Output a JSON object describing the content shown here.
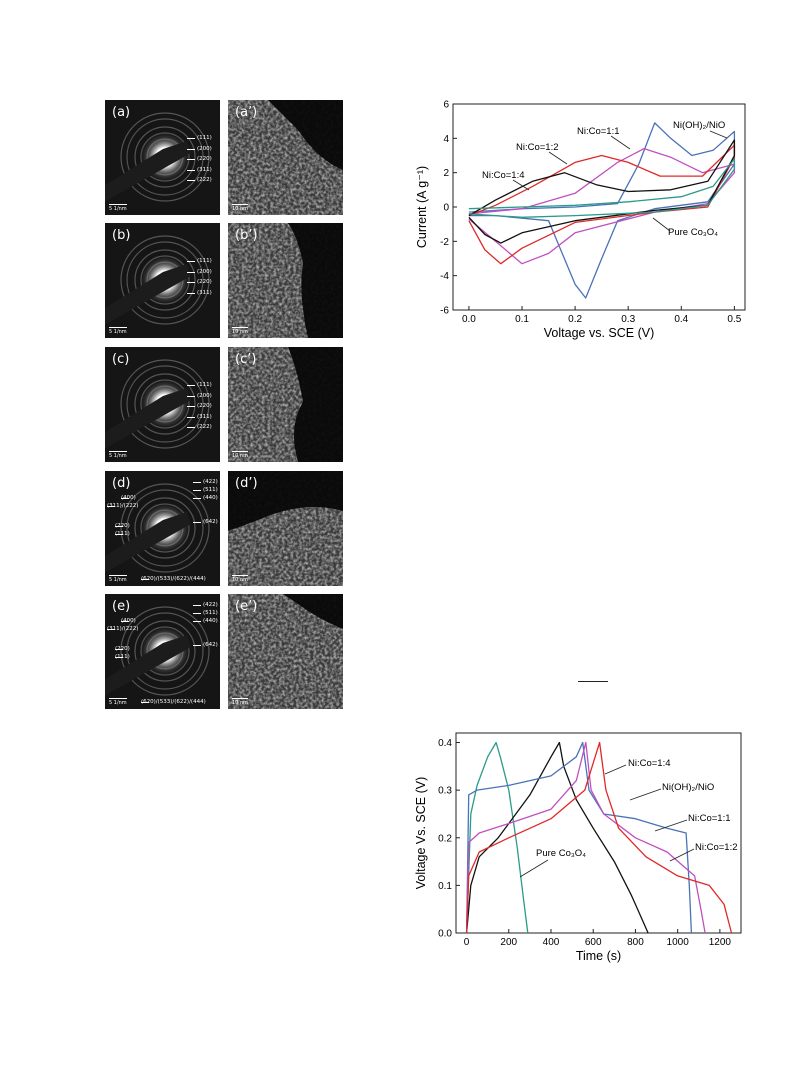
{
  "tem_panels": [
    {
      "saed_label": "(a)",
      "hr_label": "(a’)",
      "scale_saed": "5 1/nm",
      "scale_hr": "10 nm",
      "rings_right": [
        "(111)",
        "(200)",
        "(220)",
        "(311)",
        "(222)"
      ],
      "rings_left": [],
      "rings_bottom": []
    },
    {
      "saed_label": "(b)",
      "hr_label": "(b’)",
      "scale_saed": "5 1/nm",
      "scale_hr": "10 nm",
      "rings_right": [
        "(111)",
        "(200)",
        "(220)",
        "(311)"
      ],
      "rings_left": [],
      "rings_bottom": []
    },
    {
      "saed_label": "(c)",
      "hr_label": "(c’)",
      "scale_saed": "5 1/nm",
      "scale_hr": "10 nm",
      "rings_right": [
        "(111)",
        "(200)",
        "(220)",
        "(311)",
        "(222)"
      ],
      "rings_left": [],
      "rings_bottom": []
    },
    {
      "saed_label": "(d)",
      "hr_label": "(d’)",
      "scale_saed": "5 1/nm",
      "scale_hr": "10 nm",
      "rings_right": [
        "(422)",
        "(511)",
        "(440)",
        "(642)"
      ],
      "rings_left": [
        "(400)",
        "(311)/(222)",
        "(220)",
        "(111)"
      ],
      "rings_bottom": [
        "(620)/(533)/(622)/(444)"
      ]
    },
    {
      "saed_label": "(e)",
      "hr_label": "(e’)",
      "scale_saed": "5 1/nm",
      "scale_hr": "10 nm",
      "rings_right": [
        "(422)",
        "(511)",
        "(440)",
        "(642)"
      ],
      "rings_left": [
        "(400)",
        "(311)/(222)",
        "(220)",
        "(111)"
      ],
      "rings_bottom": [
        "(620)/(533)/(622)/(444)"
      ]
    }
  ],
  "chart_data": [
    {
      "type": "line",
      "chart": "cyclic-voltammetry",
      "xlabel": "Voltage vs. SCE (V)",
      "ylabel": "Current (A g⁻¹)",
      "xlim": [
        -0.03,
        0.52
      ],
      "ylim": [
        -6,
        6
      ],
      "xticks": [
        "0.0",
        "0.1",
        "0.2",
        "0.3",
        "0.4",
        "0.5"
      ],
      "yticks": [
        "6",
        "4",
        "2",
        "0",
        "-2",
        "-4",
        "-6"
      ],
      "annotations": [
        "Ni(OH)₂/NiO",
        "Ni:Co=1:1",
        "Ni:Co=1:2",
        "Ni:Co=1:4",
        "Pure Co₃O₄"
      ],
      "series": [
        {
          "name": "Ni(OH)₂/NiO",
          "color": "#4a72b8",
          "x": [
            0.0,
            0.1,
            0.2,
            0.28,
            0.32,
            0.35,
            0.38,
            0.42,
            0.46,
            0.5,
            0.5,
            0.45,
            0.35,
            0.28,
            0.25,
            0.22,
            0.2,
            0.15,
            0.05,
            0.0
          ],
          "y": [
            -0.3,
            -0.1,
            0.0,
            0.2,
            2.5,
            4.9,
            4.0,
            3.0,
            3.3,
            4.4,
            2.5,
            0.3,
            -0.1,
            -0.8,
            -3.0,
            -5.3,
            -4.5,
            -0.8,
            -0.5,
            -0.5
          ]
        },
        {
          "name": "Ni:Co=1:1",
          "color": "#c050c0",
          "x": [
            0.0,
            0.1,
            0.2,
            0.28,
            0.33,
            0.38,
            0.44,
            0.5,
            0.5,
            0.45,
            0.35,
            0.2,
            0.15,
            0.1,
            0.05,
            0.0
          ],
          "y": [
            -0.4,
            -0.1,
            0.8,
            2.6,
            3.4,
            2.9,
            2.0,
            2.5,
            2.0,
            0.2,
            -0.3,
            -1.5,
            -2.7,
            -3.3,
            -2.0,
            -0.7
          ]
        },
        {
          "name": "Ni:Co=1:2",
          "color": "#e02828",
          "x": [
            0.0,
            0.05,
            0.12,
            0.2,
            0.25,
            0.3,
            0.36,
            0.44,
            0.5,
            0.5,
            0.45,
            0.35,
            0.2,
            0.1,
            0.06,
            0.03,
            0.0
          ],
          "y": [
            -0.5,
            0.1,
            1.2,
            2.6,
            3.0,
            2.6,
            1.8,
            1.8,
            3.6,
            2.9,
            0.0,
            -0.3,
            -0.9,
            -2.4,
            -3.3,
            -2.5,
            -0.8
          ]
        },
        {
          "name": "Ni:Co=1:4",
          "color": "#111111",
          "x": [
            0.0,
            0.05,
            0.12,
            0.18,
            0.24,
            0.3,
            0.38,
            0.45,
            0.5,
            0.5,
            0.45,
            0.35,
            0.2,
            0.1,
            0.06,
            0.03,
            0.0
          ],
          "y": [
            -0.5,
            0.4,
            1.5,
            2.0,
            1.3,
            0.9,
            1.0,
            1.5,
            3.9,
            3.0,
            0.1,
            -0.2,
            -0.8,
            -1.5,
            -2.1,
            -1.6,
            -0.6
          ]
        },
        {
          "name": "Pure Co₃O₄",
          "color": "#2a9a8a",
          "x": [
            0.0,
            0.1,
            0.2,
            0.3,
            0.4,
            0.46,
            0.5,
            0.5,
            0.45,
            0.35,
            0.2,
            0.1,
            0.0
          ],
          "y": [
            -0.1,
            0.0,
            0.1,
            0.3,
            0.6,
            1.2,
            2.8,
            2.2,
            0.1,
            -0.3,
            -0.5,
            -0.6,
            -0.4
          ]
        }
      ]
    },
    {
      "type": "line",
      "chart": "galvanostatic-charge-discharge",
      "xlabel": "Time (s)",
      "ylabel": "Voltage Vs. SCE (V)",
      "xlim": [
        -50,
        1300
      ],
      "ylim": [
        0.0,
        0.42
      ],
      "xticks": [
        "0",
        "200",
        "400",
        "600",
        "800",
        "1000",
        "1200"
      ],
      "yticks": [
        "0.4",
        "0.3",
        "0.2",
        "0.1",
        "0.0"
      ],
      "annotations": [
        "Ni:Co=1:4",
        "Ni(OH)₂/NiO",
        "Ni:Co=1:1",
        "Ni:Co=1:2",
        "Pure Co₃O₄"
      ],
      "series": [
        {
          "name": "Pure Co₃O₄",
          "color": "#2a9a8a",
          "x": [
            0,
            20,
            50,
            100,
            140,
            160,
            200,
            240,
            270,
            290
          ],
          "y": [
            0.0,
            0.25,
            0.31,
            0.37,
            0.4,
            0.37,
            0.3,
            0.18,
            0.07,
            0.0
          ]
        },
        {
          "name": "Ni:Co=1:4",
          "color": "#111111",
          "x": [
            0,
            20,
            60,
            150,
            300,
            400,
            440,
            460,
            520,
            600,
            700,
            780,
            840,
            860
          ],
          "y": [
            0.0,
            0.1,
            0.16,
            0.2,
            0.29,
            0.37,
            0.4,
            0.35,
            0.28,
            0.22,
            0.15,
            0.08,
            0.02,
            0.0
          ]
        },
        {
          "name": "Ni(OH)₂/NiO",
          "color": "#4a72b8",
          "x": [
            0,
            10,
            50,
            200,
            400,
            520,
            550,
            580,
            650,
            800,
            950,
            1040,
            1055,
            1065
          ],
          "y": [
            0.0,
            0.29,
            0.3,
            0.31,
            0.33,
            0.37,
            0.4,
            0.3,
            0.25,
            0.24,
            0.22,
            0.21,
            0.1,
            0.0
          ]
        },
        {
          "name": "Ni:Co=1:1",
          "color": "#c050c0",
          "x": [
            0,
            10,
            60,
            200,
            400,
            520,
            565,
            590,
            650,
            800,
            950,
            1080,
            1110,
            1130
          ],
          "y": [
            0.0,
            0.19,
            0.21,
            0.23,
            0.26,
            0.32,
            0.4,
            0.3,
            0.25,
            0.2,
            0.17,
            0.12,
            0.05,
            0.0
          ]
        },
        {
          "name": "Ni:Co=1:2",
          "color": "#e02828",
          "x": [
            0,
            10,
            60,
            200,
            400,
            560,
            630,
            660,
            720,
            850,
            1000,
            1150,
            1220,
            1255
          ],
          "y": [
            0.0,
            0.12,
            0.17,
            0.2,
            0.24,
            0.3,
            0.4,
            0.3,
            0.22,
            0.16,
            0.12,
            0.1,
            0.06,
            0.0
          ]
        }
      ]
    }
  ]
}
